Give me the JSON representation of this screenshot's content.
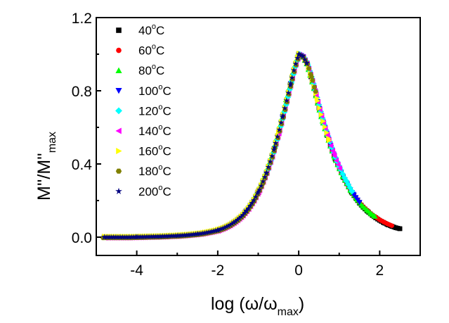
{
  "chart_data": {
    "type": "scatter",
    "title": "",
    "xlabel": "log (ω/ω_max)",
    "xlabel_main": "log (ω/ω",
    "xlabel_sub": "max",
    "xlabel_close": ")",
    "ylabel_main": "M''/M''",
    "ylabel_sub": "max",
    "xlim": [
      -5.0,
      3.0
    ],
    "ylim": [
      -0.1,
      1.2
    ],
    "xticks": [
      -4,
      -2,
      0,
      2
    ],
    "xtick_labels": [
      "-4",
      "-2",
      "0",
      "2"
    ],
    "xminor": [
      -5,
      -3,
      -1,
      1,
      3
    ],
    "yticks": [
      0.0,
      0.4,
      0.8,
      1.2
    ],
    "ytick_labels": [
      "0.0",
      "0.4",
      "0.8",
      "1.2"
    ],
    "yminor": [
      0.2,
      0.6,
      1.0
    ],
    "grid": false,
    "legend_position": "top-left",
    "series": [
      {
        "name": "40°C",
        "label_num": "40",
        "color": "#000000",
        "marker": "square",
        "x": [
          -0.3,
          -0.15,
          0.0,
          0.15,
          0.3,
          0.5,
          0.7,
          0.9,
          1.1,
          1.3,
          1.5,
          1.7,
          1.9,
          2.1,
          2.2,
          2.3,
          2.4,
          2.5
        ],
        "y": [
          0.92,
          0.98,
          1.0,
          0.97,
          0.9,
          0.75,
          0.58,
          0.43,
          0.31,
          0.22,
          0.16,
          0.12,
          0.09,
          0.07,
          0.06,
          0.055,
          0.05,
          0.05
        ]
      },
      {
        "name": "60°C",
        "label_num": "60",
        "color": "#ff0000",
        "marker": "circle",
        "x": [
          -0.3,
          -0.15,
          0.0,
          0.15,
          0.3,
          0.5,
          0.7,
          0.9,
          1.1,
          1.3,
          1.5,
          1.7,
          1.9,
          2.0,
          2.1,
          2.2,
          2.3
        ],
        "y": [
          0.92,
          0.98,
          1.0,
          0.97,
          0.9,
          0.75,
          0.58,
          0.43,
          0.31,
          0.22,
          0.16,
          0.12,
          0.09,
          0.08,
          0.07,
          0.065,
          0.06
        ]
      },
      {
        "name": "80°C",
        "label_num": "80",
        "color": "#00ff00",
        "marker": "triangle-up",
        "x": [
          -1.5,
          -1.0,
          -0.6,
          -0.3,
          0.0,
          0.3,
          0.6,
          0.9,
          1.1,
          1.3,
          1.45,
          1.6,
          1.7,
          1.8,
          1.9
        ],
        "y": [
          0.08,
          0.19,
          0.45,
          0.8,
          1.0,
          0.9,
          0.64,
          0.43,
          0.31,
          0.22,
          0.17,
          0.13,
          0.11,
          0.1,
          0.09
        ]
      },
      {
        "name": "100°C",
        "label_num": "100",
        "color": "#0000ff",
        "marker": "triangle-down",
        "x": [
          -4.8,
          -4.0,
          -3.0,
          -2.5,
          -2.0,
          -1.6,
          -1.3,
          -1.0,
          -0.7,
          -0.4,
          -0.2,
          0.0,
          0.2,
          0.4,
          0.6,
          0.8,
          1.0,
          1.2,
          1.35,
          1.5
        ],
        "y": [
          0.0,
          0.0,
          0.005,
          0.01,
          0.03,
          0.07,
          0.13,
          0.24,
          0.42,
          0.69,
          0.88,
          1.0,
          0.95,
          0.82,
          0.64,
          0.5,
          0.38,
          0.28,
          0.23,
          0.19
        ]
      },
      {
        "name": "120°C",
        "label_num": "120",
        "color": "#00ffff",
        "marker": "diamond",
        "x": [
          -1.0,
          -0.7,
          -0.4,
          -0.2,
          0.0,
          0.2,
          0.4,
          0.6,
          0.8,
          1.0,
          1.15,
          1.3
        ],
        "y": [
          0.24,
          0.42,
          0.69,
          0.88,
          1.0,
          0.95,
          0.82,
          0.64,
          0.5,
          0.38,
          0.31,
          0.25
        ]
      },
      {
        "name": "140°C",
        "label_num": "140",
        "color": "#ff00ff",
        "marker": "triangle-left",
        "x": [
          -4.8,
          -3.0,
          -2.0,
          -1.0,
          -0.5,
          0.0,
          0.2,
          0.4,
          0.55,
          0.7,
          0.85,
          1.0
        ],
        "y": [
          0.0,
          0.005,
          0.03,
          0.24,
          0.58,
          1.0,
          0.96,
          0.84,
          0.72,
          0.6,
          0.5,
          0.42
        ]
      },
      {
        "name": "160°C",
        "label_num": "160",
        "color": "#ffff00",
        "marker": "triangle-right",
        "x": [
          -4.8,
          -3.0,
          -2.0,
          -1.0,
          -0.5,
          0.0,
          0.15,
          0.3,
          0.45,
          0.6,
          0.75
        ],
        "y": [
          0.0,
          0.005,
          0.03,
          0.24,
          0.58,
          1.0,
          0.98,
          0.9,
          0.79,
          0.66,
          0.55
        ]
      },
      {
        "name": "180°C",
        "label_num": "180",
        "color": "#808000",
        "marker": "hexagon",
        "x": [
          -4.85,
          -4.0,
          -3.0,
          -2.0,
          -1.5,
          -1.2,
          -0.9,
          -0.6,
          -0.4,
          -0.2,
          0.0,
          0.1,
          0.2,
          0.3,
          0.4
        ],
        "y": [
          0.0,
          0.0,
          0.005,
          0.03,
          0.08,
          0.15,
          0.28,
          0.48,
          0.68,
          0.87,
          0.99,
          0.99,
          0.96,
          0.92,
          0.86
        ]
      },
      {
        "name": "200°C",
        "label_num": "200",
        "color": "#000080",
        "marker": "star",
        "x": [
          -4.8,
          -4.0,
          -3.0,
          -2.5,
          -2.0,
          -1.6,
          -1.3,
          -1.0,
          -0.8,
          -0.6,
          -0.4,
          -0.2,
          0.0,
          0.1,
          0.2
        ],
        "y": [
          0.0,
          0.0,
          0.005,
          0.01,
          0.03,
          0.07,
          0.13,
          0.24,
          0.34,
          0.48,
          0.68,
          0.87,
          1.0,
          1.0,
          0.97
        ]
      }
    ],
    "master_curve": {
      "description": "dense overlapping points; all series collapse onto one master curve",
      "x": [
        -4.85,
        -4.6,
        -4.4,
        -4.2,
        -4.0,
        -3.8,
        -3.6,
        -3.4,
        -3.2,
        -3.0,
        -2.8,
        -2.6,
        -2.4,
        -2.2,
        -2.0,
        -1.85,
        -1.7,
        -1.55,
        -1.4,
        -1.25,
        -1.1,
        -0.95,
        -0.8,
        -0.65,
        -0.5,
        -0.35,
        -0.2,
        -0.1,
        0.0,
        0.1,
        0.2,
        0.3,
        0.4,
        0.5,
        0.6,
        0.7,
        0.8,
        0.9,
        1.0,
        1.1,
        1.2,
        1.3,
        1.4,
        1.5,
        1.6,
        1.7,
        1.8,
        1.9,
        2.0,
        2.1,
        2.2,
        2.3,
        2.4,
        2.5
      ],
      "y": [
        0.0,
        0.0,
        0.0,
        0.0,
        0.001,
        0.002,
        0.003,
        0.004,
        0.006,
        0.008,
        0.011,
        0.015,
        0.02,
        0.028,
        0.038,
        0.05,
        0.066,
        0.088,
        0.116,
        0.155,
        0.205,
        0.27,
        0.35,
        0.45,
        0.57,
        0.7,
        0.84,
        0.93,
        1.0,
        0.99,
        0.95,
        0.88,
        0.8,
        0.71,
        0.63,
        0.56,
        0.49,
        0.43,
        0.38,
        0.33,
        0.29,
        0.25,
        0.22,
        0.19,
        0.165,
        0.145,
        0.125,
        0.11,
        0.095,
        0.083,
        0.072,
        0.063,
        0.055,
        0.05
      ]
    }
  }
}
